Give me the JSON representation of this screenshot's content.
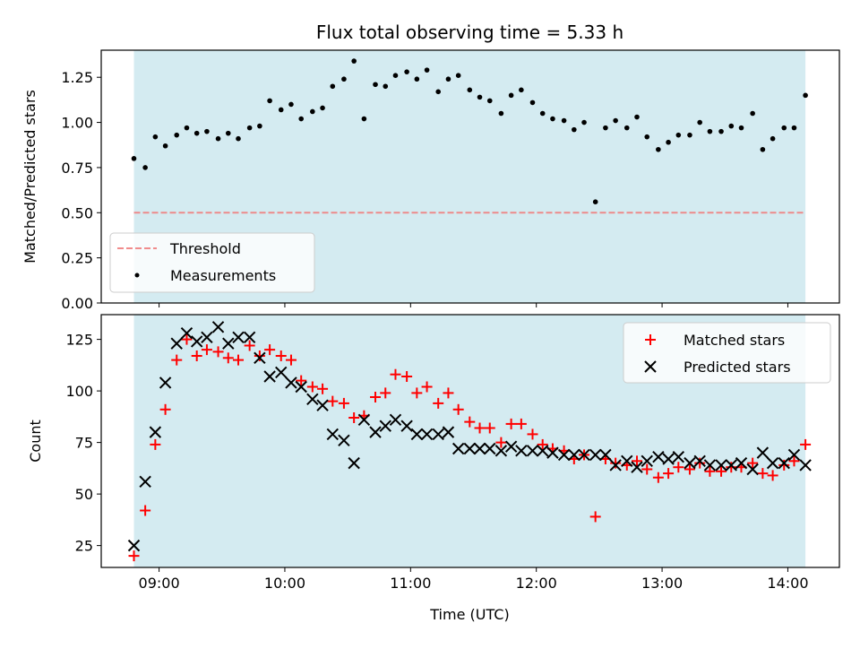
{
  "chart_data": {
    "title": "Flux total observing time = 5.33 h",
    "xlabel": "Time (UTC)",
    "x_unit": "hours UTC",
    "x_tick_labels": [
      "09:00",
      "10:00",
      "11:00",
      "12:00",
      "13:00",
      "14:00"
    ],
    "x_tick_values": [
      9,
      10,
      11,
      12,
      13,
      14
    ],
    "x_range": [
      8.54,
      14.41
    ],
    "observing_window": [
      8.8,
      14.14
    ],
    "colors": {
      "window": "#d4ebf1",
      "threshold": "#f08080",
      "matched": "#ff0000",
      "predicted": "#000000",
      "measurements": "#000000"
    },
    "panels": [
      {
        "type": "scatter",
        "ylabel": "Matched/Predicted stars",
        "ylim": [
          0,
          1.4
        ],
        "y_ticks": [
          0.0,
          0.25,
          0.5,
          0.75,
          1.0,
          1.25
        ],
        "y_tick_labels": [
          "0.00",
          "0.25",
          "0.50",
          "0.75",
          "1.00",
          "1.25"
        ],
        "legend_position": "lower-left",
        "threshold": {
          "name": "Threshold",
          "value": 0.5
        },
        "series": [
          {
            "name": "Measurements",
            "marker": "dot",
            "points": [
              [
                8.8,
                0.8
              ],
              [
                8.89,
                0.75
              ],
              [
                8.97,
                0.92
              ],
              [
                9.05,
                0.87
              ],
              [
                9.14,
                0.93
              ],
              [
                9.22,
                0.97
              ],
              [
                9.3,
                0.94
              ],
              [
                9.38,
                0.95
              ],
              [
                9.47,
                0.91
              ],
              [
                9.55,
                0.94
              ],
              [
                9.63,
                0.91
              ],
              [
                9.72,
                0.97
              ],
              [
                9.8,
                0.98
              ],
              [
                9.88,
                1.12
              ],
              [
                9.97,
                1.07
              ],
              [
                10.05,
                1.1
              ],
              [
                10.13,
                1.02
              ],
              [
                10.22,
                1.06
              ],
              [
                10.3,
                1.08
              ],
              [
                10.38,
                1.2
              ],
              [
                10.47,
                1.24
              ],
              [
                10.55,
                1.34
              ],
              [
                10.63,
                1.02
              ],
              [
                10.72,
                1.21
              ],
              [
                10.8,
                1.2
              ],
              [
                10.88,
                1.26
              ],
              [
                10.97,
                1.28
              ],
              [
                11.05,
                1.24
              ],
              [
                11.13,
                1.29
              ],
              [
                11.22,
                1.17
              ],
              [
                11.3,
                1.24
              ],
              [
                11.38,
                1.26
              ],
              [
                11.47,
                1.18
              ],
              [
                11.55,
                1.14
              ],
              [
                11.63,
                1.12
              ],
              [
                11.72,
                1.05
              ],
              [
                11.8,
                1.15
              ],
              [
                11.88,
                1.18
              ],
              [
                11.97,
                1.11
              ],
              [
                12.05,
                1.05
              ],
              [
                12.13,
                1.02
              ],
              [
                12.22,
                1.01
              ],
              [
                12.3,
                0.96
              ],
              [
                12.38,
                1.0
              ],
              [
                12.47,
                0.56
              ],
              [
                12.55,
                0.97
              ],
              [
                12.63,
                1.01
              ],
              [
                12.72,
                0.97
              ],
              [
                12.8,
                1.03
              ],
              [
                12.88,
                0.92
              ],
              [
                12.97,
                0.85
              ],
              [
                13.05,
                0.89
              ],
              [
                13.13,
                0.93
              ],
              [
                13.22,
                0.93
              ],
              [
                13.3,
                1.0
              ],
              [
                13.38,
                0.95
              ],
              [
                13.47,
                0.95
              ],
              [
                13.55,
                0.98
              ],
              [
                13.63,
                0.97
              ],
              [
                13.72,
                1.05
              ],
              [
                13.8,
                0.85
              ],
              [
                13.88,
                0.91
              ],
              [
                13.97,
                0.97
              ],
              [
                14.05,
                0.97
              ],
              [
                14.14,
                1.15
              ]
            ]
          }
        ]
      },
      {
        "type": "scatter",
        "ylabel": "Count",
        "ylim": [
          14.4,
          137.0
        ],
        "y_ticks": [
          25,
          50,
          75,
          100,
          125
        ],
        "y_tick_labels": [
          "25",
          "50",
          "75",
          "100",
          "125"
        ],
        "legend_position": "upper-right",
        "series": [
          {
            "name": "Matched stars",
            "marker": "plus",
            "points": [
              [
                8.8,
                20
              ],
              [
                8.89,
                42
              ],
              [
                8.97,
                74
              ],
              [
                9.05,
                91
              ],
              [
                9.14,
                115
              ],
              [
                9.22,
                125
              ],
              [
                9.3,
                117
              ],
              [
                9.38,
                120
              ],
              [
                9.47,
                119
              ],
              [
                9.55,
                116
              ],
              [
                9.63,
                115
              ],
              [
                9.72,
                122
              ],
              [
                9.8,
                117
              ],
              [
                9.88,
                120
              ],
              [
                9.97,
                117
              ],
              [
                10.05,
                115
              ],
              [
                10.13,
                105
              ],
              [
                10.22,
                102
              ],
              [
                10.3,
                101
              ],
              [
                10.38,
                95
              ],
              [
                10.47,
                94
              ],
              [
                10.55,
                87
              ],
              [
                10.63,
                88
              ],
              [
                10.72,
                97
              ],
              [
                10.8,
                99
              ],
              [
                10.88,
                108
              ],
              [
                10.97,
                107
              ],
              [
                11.05,
                99
              ],
              [
                11.13,
                102
              ],
              [
                11.22,
                94
              ],
              [
                11.3,
                99
              ],
              [
                11.38,
                91
              ],
              [
                11.47,
                85
              ],
              [
                11.55,
                82
              ],
              [
                11.63,
                82
              ],
              [
                11.72,
                75
              ],
              [
                11.8,
                84
              ],
              [
                11.88,
                84
              ],
              [
                11.97,
                79
              ],
              [
                12.05,
                74
              ],
              [
                12.13,
                72
              ],
              [
                12.22,
                71
              ],
              [
                12.3,
                67
              ],
              [
                12.38,
                69
              ],
              [
                12.47,
                39
              ],
              [
                12.55,
                67
              ],
              [
                12.63,
                65
              ],
              [
                12.72,
                64
              ],
              [
                12.8,
                66
              ],
              [
                12.88,
                62
              ],
              [
                12.97,
                58
              ],
              [
                13.05,
                60
              ],
              [
                13.13,
                63
              ],
              [
                13.22,
                62
              ],
              [
                13.3,
                65
              ],
              [
                13.38,
                61
              ],
              [
                13.47,
                61
              ],
              [
                13.55,
                63
              ],
              [
                13.63,
                63
              ],
              [
                13.72,
                65
              ],
              [
                13.8,
                60
              ],
              [
                13.88,
                59
              ],
              [
                13.97,
                64
              ],
              [
                14.05,
                66
              ],
              [
                14.14,
                74
              ]
            ]
          },
          {
            "name": "Predicted stars",
            "marker": "x",
            "points": [
              [
                8.8,
                25
              ],
              [
                8.89,
                56
              ],
              [
                8.97,
                80
              ],
              [
                9.05,
                104
              ],
              [
                9.14,
                123
              ],
              [
                9.22,
                128
              ],
              [
                9.3,
                124
              ],
              [
                9.38,
                126
              ],
              [
                9.47,
                131
              ],
              [
                9.55,
                123
              ],
              [
                9.63,
                126
              ],
              [
                9.72,
                126
              ],
              [
                9.8,
                116
              ],
              [
                9.88,
                107
              ],
              [
                9.97,
                109
              ],
              [
                10.05,
                104
              ],
              [
                10.13,
                102
              ],
              [
                10.22,
                96
              ],
              [
                10.3,
                93
              ],
              [
                10.38,
                79
              ],
              [
                10.47,
                76
              ],
              [
                10.55,
                65
              ],
              [
                10.63,
                86
              ],
              [
                10.72,
                80
              ],
              [
                10.8,
                83
              ],
              [
                10.88,
                86
              ],
              [
                10.97,
                83
              ],
              [
                11.05,
                79
              ],
              [
                11.13,
                79
              ],
              [
                11.22,
                79
              ],
              [
                11.3,
                80
              ],
              [
                11.38,
                72
              ],
              [
                11.47,
                72
              ],
              [
                11.55,
                72
              ],
              [
                11.63,
                72
              ],
              [
                11.72,
                71
              ],
              [
                11.8,
                73
              ],
              [
                11.88,
                71
              ],
              [
                11.97,
                71
              ],
              [
                12.05,
                71
              ],
              [
                12.13,
                70
              ],
              [
                12.22,
                69
              ],
              [
                12.3,
                69
              ],
              [
                12.38,
                69
              ],
              [
                12.47,
                69
              ],
              [
                12.55,
                69
              ],
              [
                12.63,
                64
              ],
              [
                12.72,
                66
              ],
              [
                12.8,
                63
              ],
              [
                12.88,
                66
              ],
              [
                12.97,
                68
              ],
              [
                13.05,
                67
              ],
              [
                13.13,
                68
              ],
              [
                13.22,
                65
              ],
              [
                13.3,
                66
              ],
              [
                13.38,
                64
              ],
              [
                13.47,
                64
              ],
              [
                13.55,
                64
              ],
              [
                13.63,
                65
              ],
              [
                13.72,
                62
              ],
              [
                13.8,
                70
              ],
              [
                13.88,
                65
              ],
              [
                13.97,
                65
              ],
              [
                14.05,
                69
              ],
              [
                14.14,
                64
              ]
            ]
          }
        ]
      }
    ]
  }
}
